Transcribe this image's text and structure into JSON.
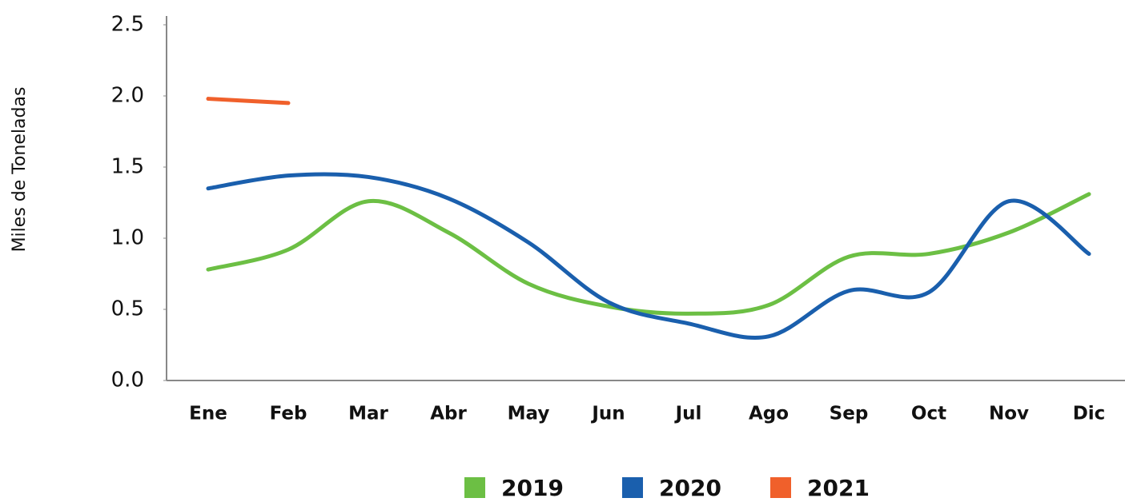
{
  "chart_data": {
    "type": "line",
    "y_label": "Miles de Toneladas",
    "categories": [
      "Ene",
      "Feb",
      "Mar",
      "Abr",
      "May",
      "Jun",
      "Jul",
      "Ago",
      "Sep",
      "Oct",
      "Nov",
      "Dic"
    ],
    "series": [
      {
        "name": "2019",
        "color": "#6cbf44",
        "values": [
          0.78,
          0.92,
          1.26,
          1.04,
          0.68,
          0.52,
          0.47,
          0.53,
          0.87,
          0.89,
          1.04,
          1.31
        ]
      },
      {
        "name": "2020",
        "color": "#1a5fad",
        "values": [
          1.35,
          1.44,
          1.43,
          1.28,
          0.97,
          0.55,
          0.4,
          0.31,
          0.63,
          0.62,
          1.26,
          0.89
        ]
      },
      {
        "name": "2021",
        "color": "#f0602b",
        "values": [
          1.98,
          1.95,
          null,
          null,
          null,
          null,
          null,
          null,
          null,
          null,
          null,
          null
        ]
      }
    ],
    "ylim": [
      0,
      2.5
    ],
    "yticks": [
      {
        "value": 0,
        "label": "0.0"
      },
      0.5,
      {
        "value": 1,
        "label": "1.0"
      },
      1.5,
      {
        "value": 2,
        "label": "2.0"
      },
      2.5
    ],
    "grid": false
  }
}
